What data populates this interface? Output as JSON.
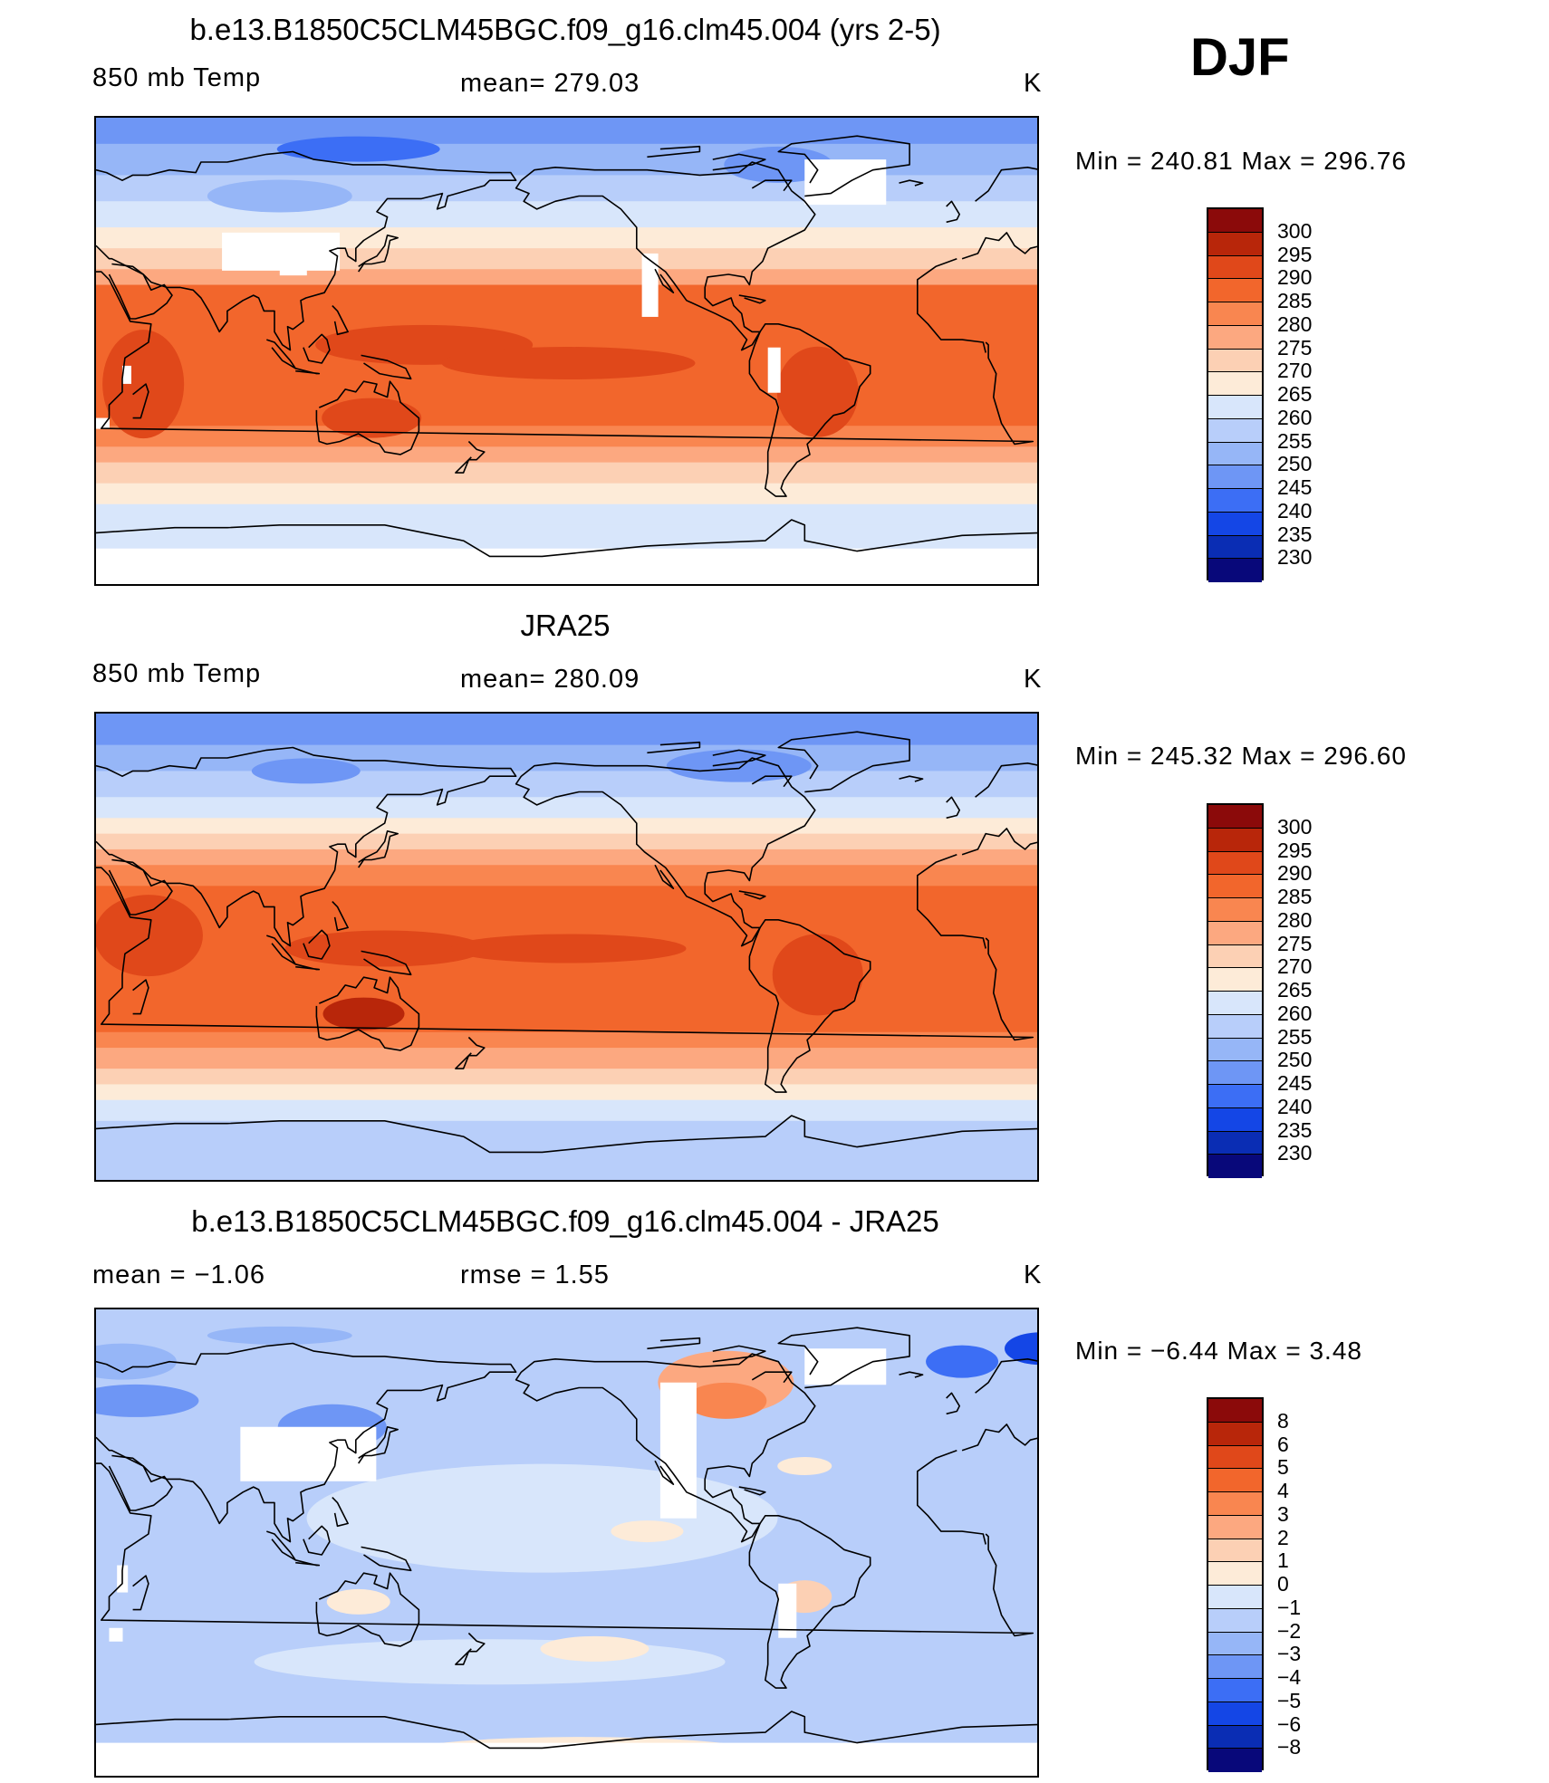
{
  "season": "DJF",
  "colors": {
    "abs_scale": [
      "#08087a",
      "#0a2db4",
      "#1446e6",
      "#3c6ef5",
      "#6e96f5",
      "#96b6f7",
      "#b8cefa",
      "#d8e6fb",
      "#fdebd8",
      "#fcd0b4",
      "#fca880",
      "#f98650",
      "#f2662c",
      "#e0481a",
      "#b8260a",
      "#8b0a0a"
    ],
    "diff_scale": [
      "#08087a",
      "#0a2db4",
      "#1446e6",
      "#3c6ef5",
      "#6e96f5",
      "#96b6f7",
      "#b8cefa",
      "#d8e6fb",
      "#fdebd8",
      "#fcd0b4",
      "#fca880",
      "#f98650",
      "#f2662c",
      "#e0481a",
      "#b8260a",
      "#8b0a0a"
    ],
    "land": "#000000",
    "missing": "#ffffff"
  },
  "panels": [
    {
      "title": "b.e13.B1850C5CLM45BGC.f09_g16.clm45.004 (yrs 2-5)",
      "left": "850 mb Temp",
      "center": "mean= 279.03",
      "right": "K",
      "min_max": "Min  =  240.81  Max  =  296.76"
    },
    {
      "title": "JRA25",
      "left": "850 mb Temp",
      "center": "mean= 280.09",
      "right": "K",
      "min_max": "Min  =  245.32  Max  =  296.60"
    },
    {
      "title": "b.e13.B1850C5CLM45BGC.f09_g16.clm45.004 - JRA25",
      "left": "mean  =     −1.06",
      "center": "rmse  =      1.55",
      "right": "K",
      "min_max": "Min  =    −6.44  Max  =       3.48"
    }
  ],
  "chart_data": [
    {
      "type": "heatmap",
      "title": "b.e13.B1850C5CLM45BGC.f09_g16.clm45.004 (yrs 2-5)",
      "variable": "850 mb Temp",
      "units": "K",
      "mean": 279.03,
      "min": 240.81,
      "max": 296.76,
      "projection": "cylindrical equidistant, centered on Pacific",
      "colorbar_levels": [
        300,
        295,
        290,
        285,
        280,
        275,
        270,
        265,
        260,
        255,
        250,
        245,
        240,
        235,
        230
      ]
    },
    {
      "type": "heatmap",
      "title": "JRA25",
      "variable": "850 mb Temp",
      "units": "K",
      "mean": 280.09,
      "min": 245.32,
      "max": 296.6,
      "projection": "cylindrical equidistant, centered on Pacific",
      "colorbar_levels": [
        300,
        295,
        290,
        285,
        280,
        275,
        270,
        265,
        260,
        255,
        250,
        245,
        240,
        235,
        230
      ]
    },
    {
      "type": "heatmap",
      "title": "b.e13.B1850C5CLM45BGC.f09_g16.clm45.004 - JRA25",
      "units": "K",
      "mean": -1.06,
      "rmse": 1.55,
      "min": -6.44,
      "max": 3.48,
      "projection": "cylindrical equidistant, centered on Pacific",
      "colorbar_levels": [
        8,
        6,
        5,
        4,
        3,
        2,
        1,
        0,
        -1,
        -2,
        -3,
        -4,
        -5,
        -6,
        -8
      ],
      "colorbar_labels": [
        "8",
        "6",
        "5",
        "4",
        "3",
        "2",
        "1",
        "0",
        "−1",
        "−2",
        "−3",
        "−4",
        "−5",
        "−6",
        "−8"
      ]
    }
  ]
}
